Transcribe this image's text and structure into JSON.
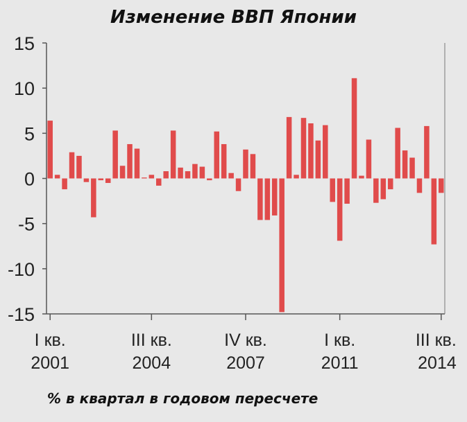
{
  "chart_data": {
    "type": "bar",
    "title": "Изменение ВВП Японии",
    "subtitle": "% в квартал в годовом пересчете",
    "ylim": [
      -15,
      15
    ],
    "yticks": [
      15,
      10,
      5,
      0,
      -5,
      -10,
      -15
    ],
    "ytick_labels": [
      "15",
      "10",
      "5",
      "0",
      "-5",
      "-10",
      "-15"
    ],
    "xticks": [
      {
        "index": 0,
        "line1": "I кв.",
        "line2": "2001"
      },
      {
        "index": 14,
        "line1": "III кв.",
        "line2": "2004"
      },
      {
        "index": 27,
        "line1": "IV кв.",
        "line2": "2007"
      },
      {
        "index": 40,
        "line1": "I кв.",
        "line2": "2011"
      },
      {
        "index": 54,
        "line1": "III кв.",
        "line2": "2014"
      }
    ],
    "values": [
      6.4,
      0.4,
      -1.2,
      2.9,
      2.5,
      -0.4,
      -4.3,
      -0.2,
      -0.5,
      5.3,
      1.4,
      3.8,
      3.3,
      0.1,
      0.4,
      -0.8,
      0.8,
      5.3,
      1.2,
      0.8,
      1.6,
      1.3,
      -0.2,
      5.2,
      3.8,
      0.6,
      -1.4,
      3.2,
      2.7,
      -4.6,
      -4.6,
      -4.1,
      -14.8,
      6.8,
      0.4,
      6.7,
      6.1,
      4.2,
      5.9,
      -2.6,
      -6.9,
      -2.8,
      11.1,
      0.3,
      4.3,
      -2.7,
      -2.3,
      -1.2,
      5.6,
      3.1,
      2.3,
      -1.6,
      5.8,
      -7.3,
      -1.6
    ],
    "bar_color": "#e04b4b",
    "grid": false
  }
}
